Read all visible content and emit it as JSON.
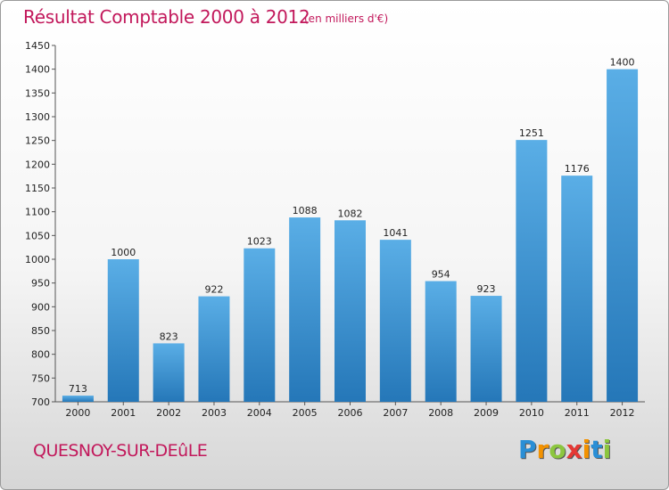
{
  "header": {
    "title": "Résultat Comptable 2000 à 2012",
    "unit": "(en milliers d'€)"
  },
  "footer": {
    "city": "QUESNOY-SUR-DEûLE",
    "logo_letters": [
      "P",
      "r",
      "o",
      "x",
      "i",
      "t",
      "i"
    ],
    "logo_colors": [
      "#2a8fd6",
      "#f39200",
      "#8cc63f",
      "#e53935",
      "#f39200",
      "#2a8fd6",
      "#8cc63f"
    ]
  },
  "colors": {
    "bar_light": "#5aaee6",
    "bar_dark": "#2577b8",
    "accent": "#c2185b"
  },
  "chart_data": {
    "type": "bar",
    "categories": [
      "2000",
      "2001",
      "2002",
      "2003",
      "2004",
      "2005",
      "2006",
      "2007",
      "2008",
      "2009",
      "2010",
      "2011",
      "2012"
    ],
    "values": [
      713,
      1000,
      823,
      922,
      1023,
      1088,
      1082,
      1041,
      954,
      923,
      1251,
      1176,
      1400
    ],
    "title": "Résultat Comptable 2000 à 2012",
    "xlabel": "",
    "ylabel": "",
    "ylim": [
      700,
      1450
    ],
    "yticks": [
      700,
      750,
      800,
      850,
      900,
      950,
      1000,
      1050,
      1100,
      1150,
      1200,
      1250,
      1300,
      1350,
      1400,
      1450
    ],
    "grid": false,
    "data_labels": true
  }
}
